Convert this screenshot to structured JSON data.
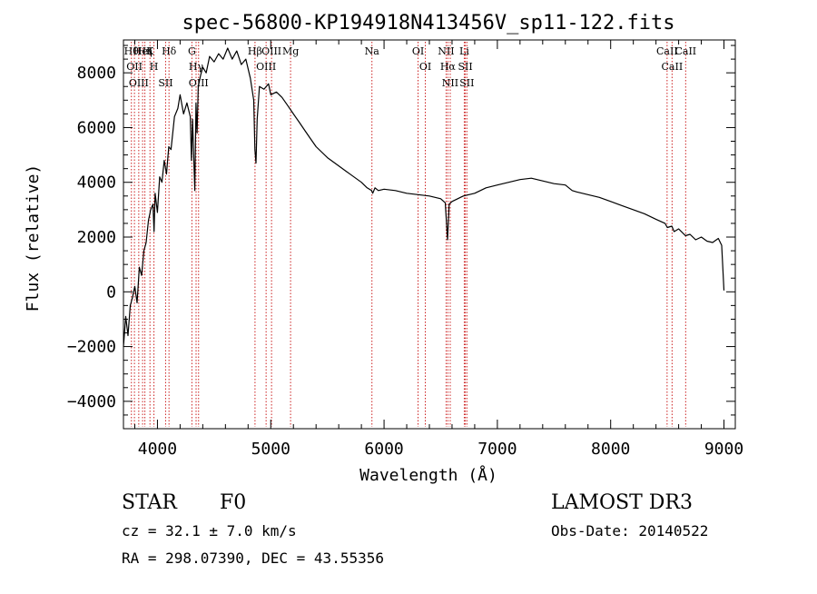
{
  "chart_data": {
    "type": "line",
    "title": "spec-56800-KP194918N413456V_sp11-122.fits",
    "xlabel": "Wavelength (Å)",
    "ylabel": "Flux (relative)",
    "xlim": [
      3700,
      9100
    ],
    "ylim": [
      -5000,
      9200
    ],
    "xticks": [
      4000,
      5000,
      6000,
      7000,
      8000,
      9000
    ],
    "xtick_labels": [
      "4000",
      "5000",
      "6000",
      "7000",
      "8000",
      "9000"
    ],
    "yticks": [
      -4000,
      -2000,
      0,
      2000,
      4000,
      6000,
      8000
    ],
    "ytick_labels": [
      "−4000",
      "−2000",
      "0",
      "2000",
      "4000",
      "6000",
      "8000"
    ],
    "series": [
      {
        "name": "spectrum",
        "x": [
          3700,
          3720,
          3740,
          3760,
          3780,
          3800,
          3820,
          3840,
          3860,
          3880,
          3900,
          3920,
          3940,
          3960,
          3970,
          3980,
          4000,
          4020,
          4040,
          4060,
          4080,
          4100,
          4120,
          4150,
          4180,
          4200,
          4230,
          4260,
          4290,
          4300,
          4310,
          4330,
          4340,
          4350,
          4360,
          4380,
          4400,
          4430,
          4460,
          4500,
          4540,
          4580,
          4620,
          4660,
          4700,
          4740,
          4780,
          4820,
          4850,
          4860,
          4870,
          4880,
          4900,
          4940,
          4980,
          5000,
          5050,
          5100,
          5150,
          5200,
          5250,
          5300,
          5350,
          5400,
          5500,
          5600,
          5700,
          5800,
          5850,
          5890,
          5900,
          5920,
          5950,
          6000,
          6100,
          6200,
          6300,
          6400,
          6500,
          6540,
          6560,
          6575,
          6600,
          6650,
          6700,
          6800,
          6900,
          7000,
          7100,
          7200,
          7300,
          7400,
          7500,
          7600,
          7660,
          7700,
          7800,
          7900,
          8000,
          8100,
          8200,
          8300,
          8400,
          8480,
          8500,
          8540,
          8560,
          8600,
          8660,
          8700,
          8750,
          8800,
          8850,
          8900,
          8950,
          8980,
          9000
        ],
        "y": [
          -2000,
          -900,
          -1600,
          -500,
          -200,
          200,
          -400,
          900,
          600,
          1500,
          1800,
          2600,
          3000,
          3200,
          2200,
          3600,
          2900,
          4200,
          4000,
          4800,
          4300,
          5300,
          5200,
          6400,
          6700,
          7200,
          6500,
          6900,
          6400,
          4800,
          6300,
          3700,
          6900,
          5800,
          7500,
          7900,
          8200,
          8000,
          8600,
          8400,
          8700,
          8500,
          8900,
          8500,
          8800,
          8300,
          8500,
          7800,
          7000,
          5200,
          4700,
          6300,
          7500,
          7400,
          7600,
          7200,
          7300,
          7100,
          6800,
          6500,
          6200,
          5900,
          5600,
          5300,
          4900,
          4600,
          4300,
          4000,
          3800,
          3700,
          3600,
          3800,
          3700,
          3750,
          3700,
          3600,
          3550,
          3500,
          3400,
          3250,
          1900,
          3200,
          3300,
          3400,
          3500,
          3600,
          3800,
          3900,
          4000,
          4100,
          4150,
          4050,
          3950,
          3900,
          3700,
          3650,
          3550,
          3450,
          3300,
          3150,
          3000,
          2850,
          2650,
          2500,
          2350,
          2400,
          2200,
          2300,
          2050,
          2100,
          1900,
          2000,
          1850,
          1800,
          1950,
          1700,
          50
        ]
      }
    ],
    "lines": [
      {
        "x": 3770,
        "labels": [
          "Hθ"
        ]
      },
      {
        "x": 3797,
        "labels": [
          "OII"
        ]
      },
      {
        "x": 3835,
        "labels": [
          "OIII"
        ]
      },
      {
        "x": 3869,
        "labels": [
          "HeI"
        ]
      },
      {
        "x": 3889,
        "labels": [
          "Hη"
        ]
      },
      {
        "x": 3934,
        "labels": [
          "K"
        ]
      },
      {
        "x": 3969,
        "labels": [
          "H"
        ]
      },
      {
        "x": 4072,
        "labels": [
          "SII"
        ]
      },
      {
        "x": 4102,
        "labels": [
          "Hδ"
        ]
      },
      {
        "x": 4304,
        "labels": [
          "G"
        ]
      },
      {
        "x": 4341,
        "labels": [
          "Hγ"
        ]
      },
      {
        "x": 4363,
        "labels": [
          "OIII"
        ]
      },
      {
        "x": 4861,
        "labels": [
          "Hβ"
        ]
      },
      {
        "x": 4959,
        "labels": [
          "OIII"
        ]
      },
      {
        "x": 5007,
        "labels": [
          "OIII"
        ]
      },
      {
        "x": 5175,
        "labels": [
          "Mg"
        ]
      },
      {
        "x": 5893,
        "labels": [
          "Na"
        ]
      },
      {
        "x": 6300,
        "labels": [
          "OI"
        ]
      },
      {
        "x": 6364,
        "labels": [
          "OI"
        ]
      },
      {
        "x": 6548,
        "labels": [
          "NII"
        ]
      },
      {
        "x": 6563,
        "labels": [
          "Hα"
        ]
      },
      {
        "x": 6584,
        "labels": [
          "NII"
        ]
      },
      {
        "x": 6708,
        "labels": [
          "Li"
        ]
      },
      {
        "x": 6717,
        "labels": [
          "SII"
        ]
      },
      {
        "x": 6731,
        "labels": [
          "SII"
        ]
      },
      {
        "x": 8498,
        "labels": [
          "CaII"
        ]
      },
      {
        "x": 8542,
        "labels": [
          "CaII"
        ]
      },
      {
        "x": 8662,
        "labels": [
          "CaII"
        ]
      }
    ]
  },
  "info": {
    "object_class": "STAR",
    "subclass": "F0",
    "survey": "LAMOST DR3",
    "cz": "cz = 32.1 ± 7.0 km/s",
    "obs_date": "Obs-Date: 20140522",
    "coords": "RA = 298.07390, DEC =  43.55356"
  },
  "colors": {
    "line_marker": "#cc2222",
    "spectrum": "#000000",
    "axes": "#000000"
  }
}
